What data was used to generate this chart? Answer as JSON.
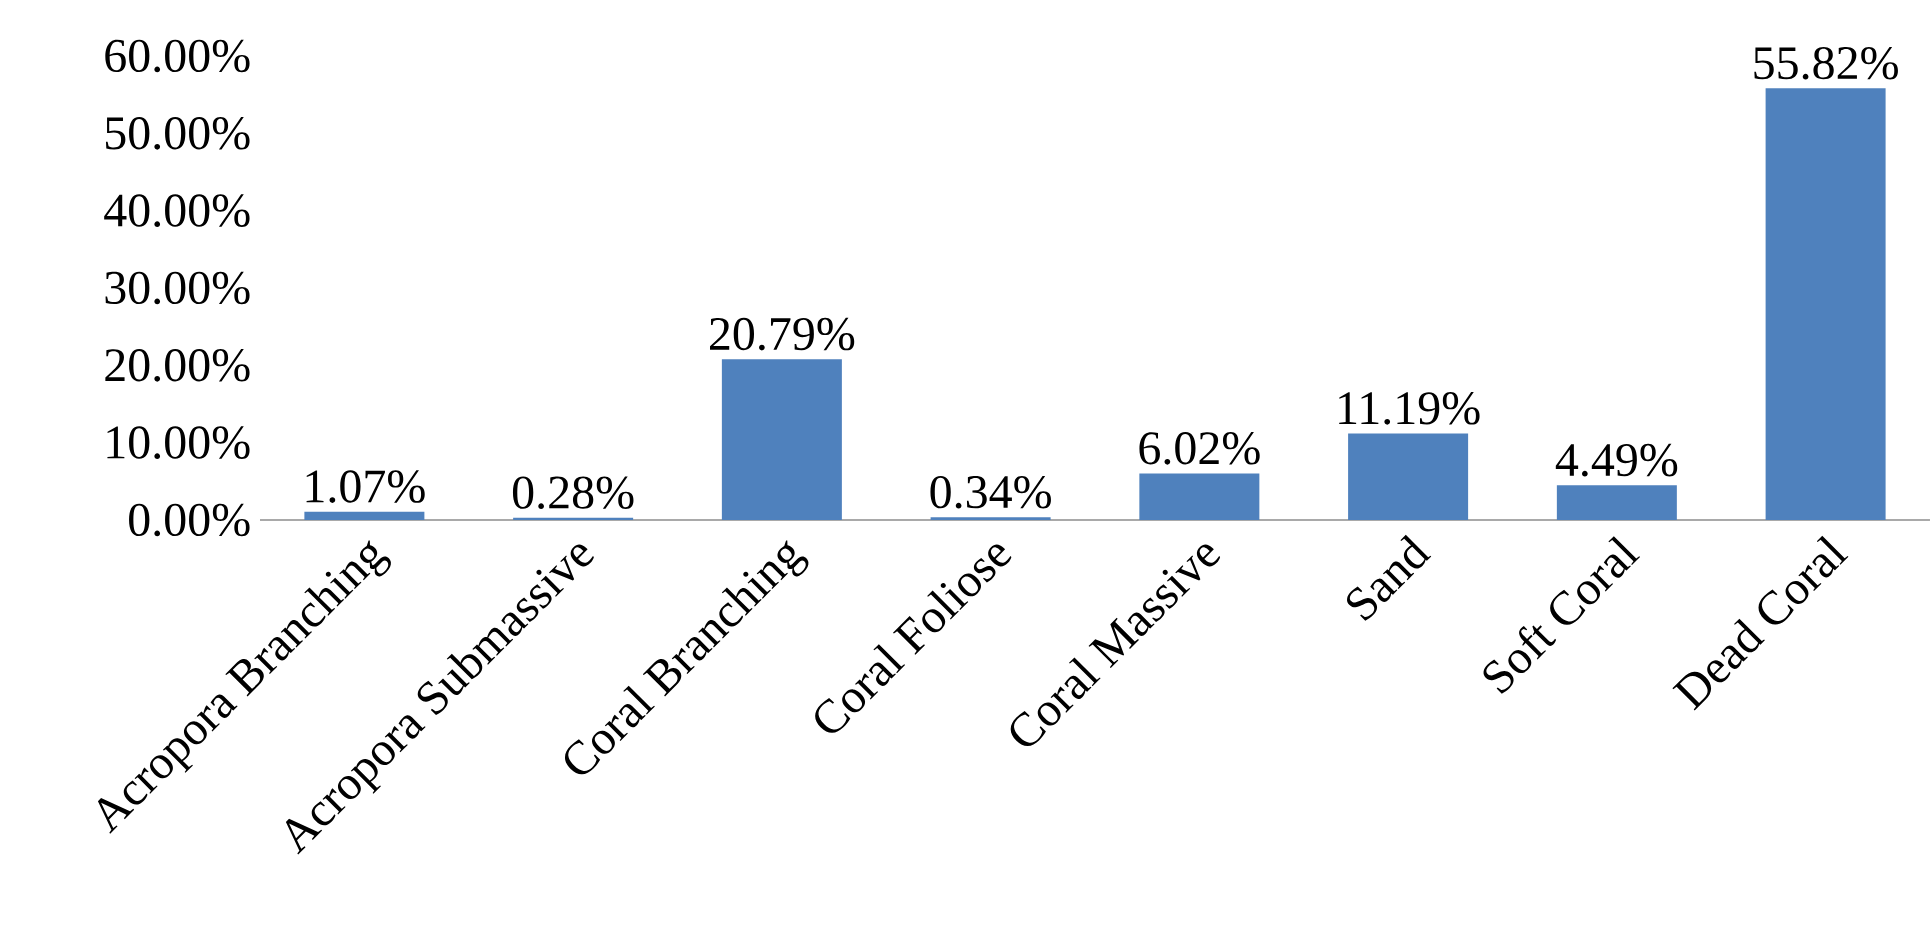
{
  "chart_data": {
    "type": "bar",
    "categories": [
      "Acropora Branching",
      "Acropora Submassive",
      "Coral Branching",
      "Coral Foliose",
      "Coral Massive",
      "Sand",
      "Soft Coral",
      "Dead Coral"
    ],
    "values": [
      1.07,
      0.28,
      20.79,
      0.34,
      6.02,
      11.19,
      4.49,
      55.82
    ],
    "value_labels": [
      "1.07%",
      "0.28%",
      "20.79%",
      "0.34%",
      "6.02%",
      "11.19%",
      "4.49%",
      "55.82%"
    ],
    "color": "#4f81bd",
    "ylim": [
      0,
      60
    ],
    "yticks": [
      {
        "value": 0,
        "label": "0.00%"
      },
      {
        "value": 10,
        "label": "10.00%"
      },
      {
        "value": 20,
        "label": "20.00%"
      },
      {
        "value": 30,
        "label": "30.00%"
      },
      {
        "value": 40,
        "label": "40.00%"
      },
      {
        "value": 50,
        "label": "50.00%"
      },
      {
        "value": 60,
        "label": "60.00%"
      }
    ]
  }
}
